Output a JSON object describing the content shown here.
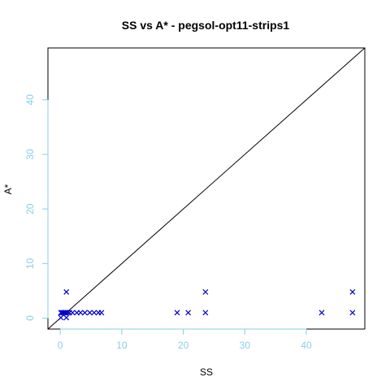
{
  "chart_data": {
    "type": "scatter",
    "title": "SS vs A* - pegsol-opt11-strips1",
    "xlabel": "SS",
    "ylabel": "A*",
    "xlim": [
      -2,
      49.5
    ],
    "ylim": [
      -2,
      49.5
    ],
    "x_ticks": [
      0,
      10,
      20,
      30,
      40
    ],
    "y_ticks": [
      0,
      10,
      20,
      30,
      40
    ],
    "tick_color": "#87CEEB",
    "marker": "x",
    "marker_color": "#0000CC",
    "diagonal_line": true,
    "grid": false,
    "points": [
      {
        "x": 0.1,
        "y": 0.1
      },
      {
        "x": 0.1,
        "y": 1.0
      },
      {
        "x": 0.3,
        "y": 1.0
      },
      {
        "x": 0.5,
        "y": 1.0
      },
      {
        "x": 0.7,
        "y": 1.0
      },
      {
        "x": 0.9,
        "y": 1.0
      },
      {
        "x": 1.0,
        "y": 0.1
      },
      {
        "x": 1.0,
        "y": 4.8
      },
      {
        "x": 1.2,
        "y": 1.0
      },
      {
        "x": 1.5,
        "y": 1.0
      },
      {
        "x": 2.0,
        "y": 1.0
      },
      {
        "x": 2.7,
        "y": 1.0
      },
      {
        "x": 3.3,
        "y": 1.0
      },
      {
        "x": 4.0,
        "y": 1.0
      },
      {
        "x": 4.8,
        "y": 1.0
      },
      {
        "x": 5.5,
        "y": 1.0
      },
      {
        "x": 6.2,
        "y": 1.0
      },
      {
        "x": 6.7,
        "y": 1.0
      },
      {
        "x": 19.0,
        "y": 1.0
      },
      {
        "x": 20.8,
        "y": 1.0
      },
      {
        "x": 23.6,
        "y": 1.0
      },
      {
        "x": 23.6,
        "y": 4.8
      },
      {
        "x": 42.5,
        "y": 1.0
      },
      {
        "x": 47.5,
        "y": 1.0
      },
      {
        "x": 47.5,
        "y": 4.8
      }
    ]
  }
}
